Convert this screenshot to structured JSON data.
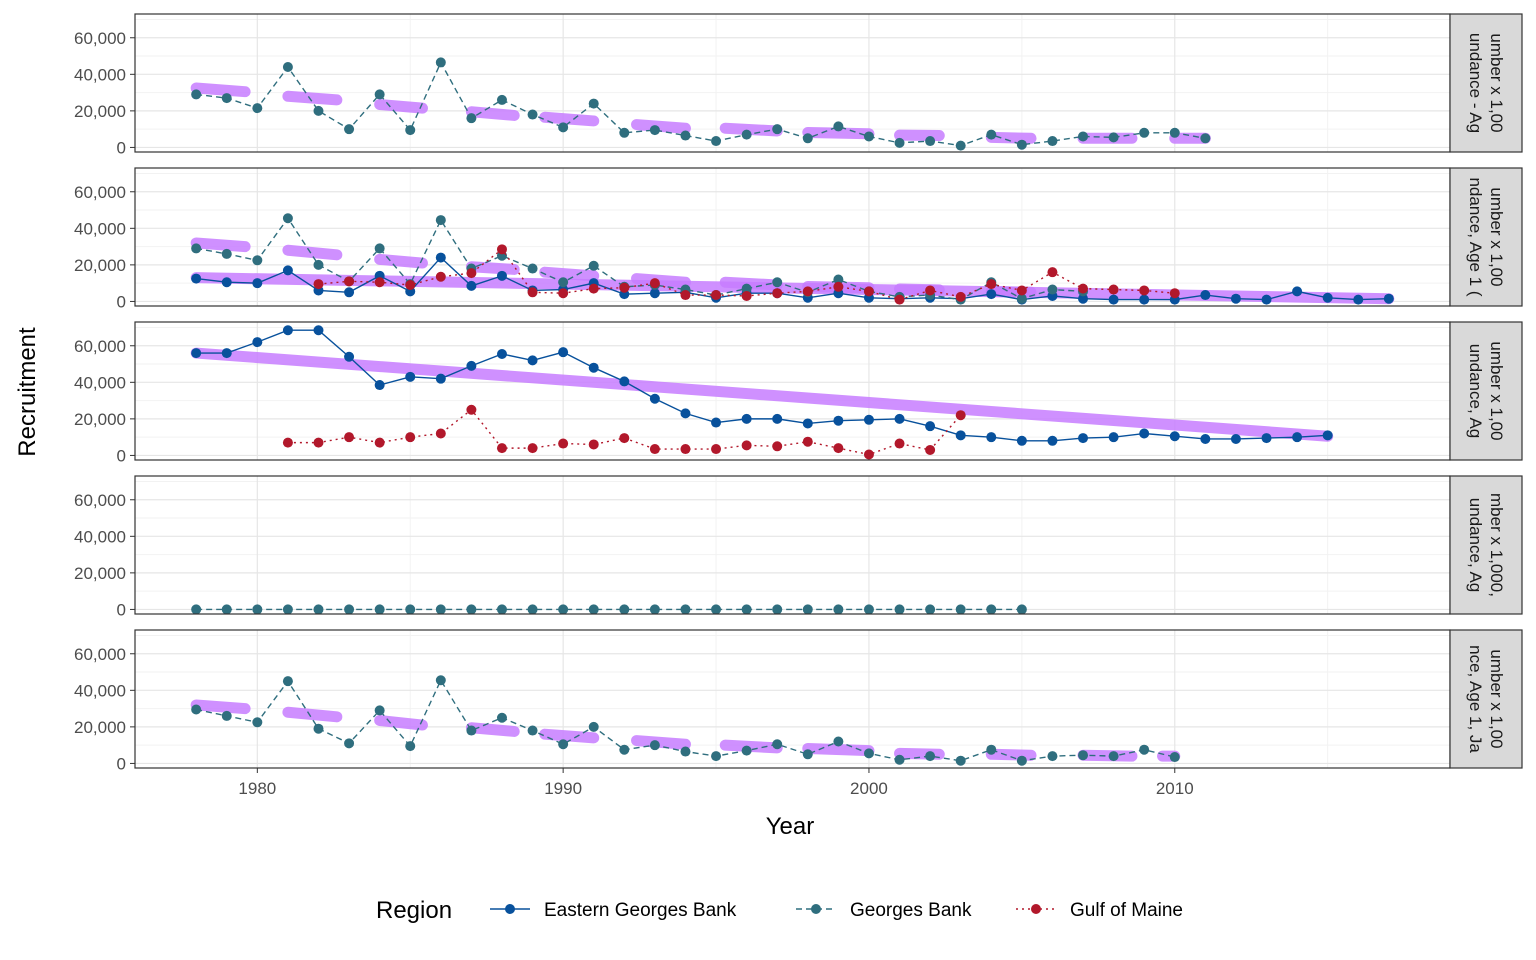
{
  "chart_data": {
    "type": "line",
    "xlabel": "Year",
    "ylabel": "Recruitment",
    "x_ticks": [
      1980,
      1990,
      2000,
      2010
    ],
    "y_ticks": [
      0,
      20000,
      40000,
      60000
    ],
    "y_tick_labels": [
      "0",
      "20,000",
      "40,000",
      "60,000"
    ],
    "xlim": [
      1976,
      2019
    ],
    "ylim": [
      -2500,
      73000
    ],
    "grid": true,
    "legend": {
      "title": "Region",
      "position": "bottom",
      "items": [
        {
          "name": "Eastern Georges Bank",
          "color": "#08519c",
          "dash": "solid"
        },
        {
          "name": "Georges Bank",
          "color": "#2f6e7e",
          "dash": "dashed"
        },
        {
          "name": "Gulf of Maine",
          "color": "#b2182b",
          "dash": "dotted"
        }
      ]
    },
    "trend_color": "#c77dff",
    "panels": [
      {
        "strip": [
          "undance - Ag",
          "umber x 1,00"
        ],
        "series": [
          {
            "name": "Georges Bank",
            "x": [
              1978,
              1979,
              1980,
              1981,
              1982,
              1983,
              1984,
              1985,
              1986,
              1987,
              1988,
              1989,
              1990,
              1991,
              1992,
              1993,
              1994,
              1995,
              1996,
              1997,
              1998,
              1999,
              2000,
              2001,
              2002,
              2003,
              2004,
              2005,
              2006,
              2007,
              2008,
              2009,
              2010,
              2011
            ],
            "y": [
              29000,
              27000,
              21500,
              44000,
              20000,
              10000,
              29000,
              9500,
              46500,
              16000,
              26000,
              18000,
              11000,
              24000,
              8000,
              9500,
              6500,
              3500,
              7000,
              10000,
              5000,
              11500,
              6000,
              2500,
              3500,
              1000,
              7000,
              1500,
              3500,
              6000,
              5500,
              8000,
              8000,
              5000
            ]
          }
        ],
        "trend_segments": [
          [
            [
              1978,
              32500
            ],
            [
              1979.6,
              30500
            ]
          ],
          [
            [
              1981,
              28000
            ],
            [
              1982.6,
              26000
            ]
          ],
          [
            [
              1984,
              23500
            ],
            [
              1985.4,
              21500
            ]
          ],
          [
            [
              1987,
              19500
            ],
            [
              1988.4,
              17500
            ]
          ],
          [
            [
              1989.4,
              16500
            ],
            [
              1991,
              14500
            ]
          ],
          [
            [
              1992.4,
              12500
            ],
            [
              1994,
              10500
            ]
          ],
          [
            [
              1995.3,
              10500
            ],
            [
              1997,
              9000
            ]
          ],
          [
            [
              1998,
              8200
            ],
            [
              2000,
              7500
            ]
          ],
          [
            [
              2001,
              6700
            ],
            [
              2002.3,
              6500
            ]
          ],
          [
            [
              2004,
              5500
            ],
            [
              2005.3,
              5000
            ]
          ],
          [
            [
              2007,
              5000
            ],
            [
              2008.6,
              5000
            ]
          ],
          [
            [
              2010,
              5000
            ],
            [
              2011,
              5000
            ]
          ]
        ]
      },
      {
        "strip": [
          "ndance, Age 1 (",
          "umber x 1,00"
        ],
        "series": [
          {
            "name": "Eastern Georges Bank",
            "x": [
              1978,
              1979,
              1980,
              1981,
              1982,
              1983,
              1984,
              1985,
              1986,
              1987,
              1988,
              1989,
              1990,
              1991,
              1992,
              1993,
              1994,
              1995,
              1996,
              1997,
              1998,
              1999,
              2000,
              2001,
              2002,
              2003,
              2004,
              2005,
              2006,
              2007,
              2008,
              2009,
              2010,
              2011,
              2012,
              2013,
              2014,
              2015,
              2016,
              2017
            ],
            "y": [
              12500,
              10500,
              10000,
              17000,
              6000,
              5000,
              14000,
              5500,
              24000,
              8500,
              14000,
              6000,
              6500,
              10000,
              4000,
              4500,
              5000,
              2000,
              4500,
              4500,
              2000,
              4500,
              2000,
              1500,
              2000,
              1500,
              4000,
              1000,
              3000,
              1500,
              1000,
              1000,
              1000,
              3500,
              1500,
              1000,
              5500,
              2000,
              1000,
              1500
            ]
          },
          {
            "name": "Georges Bank",
            "x": [
              1978,
              1979,
              1980,
              1981,
              1982,
              1983,
              1984,
              1985,
              1986,
              1987,
              1988,
              1989,
              1990,
              1991,
              1992,
              1993,
              1994,
              1995,
              1996,
              1997,
              1998,
              1999,
              2000,
              2001,
              2002,
              2003,
              2004,
              2005,
              2006,
              2007
            ],
            "y": [
              29000,
              26000,
              22500,
              45500,
              20000,
              11000,
              29000,
              9500,
              44500,
              18000,
              25000,
              18000,
              10500,
              19500,
              8000,
              9000,
              6500,
              3500,
              7000,
              10500,
              5000,
              12000,
              5500,
              2500,
              3500,
              1000,
              10500,
              1500,
              6500,
              5500
            ]
          },
          {
            "name": "Gulf of Maine",
            "x": [
              1982,
              1983,
              1984,
              1985,
              1986,
              1987,
              1988,
              1989,
              1990,
              1991,
              1992,
              1993,
              1994,
              1995,
              1996,
              1997,
              1998,
              1999,
              2000,
              2001,
              2002,
              2003,
              2004,
              2005,
              2006,
              2007,
              2008,
              2009,
              2010
            ],
            "y": [
              9500,
              11000,
              10500,
              9000,
              13500,
              15500,
              28500,
              5000,
              4500,
              7000,
              7500,
              10000,
              3500,
              3500,
              3000,
              4500,
              5500,
              8000,
              5500,
              1000,
              6000,
              2500,
              9500,
              6000,
              16000,
              7000,
              6500,
              6000,
              4500
            ]
          }
        ],
        "trend_lines": [
          [
            [
              1978,
              13000
            ],
            [
              2017,
              1500
            ]
          ]
        ],
        "trend_segments": [
          [
            [
              1978,
              32000
            ],
            [
              1979.6,
              30000
            ]
          ],
          [
            [
              1981,
              28000
            ],
            [
              1982.6,
              25500
            ]
          ],
          [
            [
              1984,
              23000
            ],
            [
              1985.4,
              21000
            ]
          ],
          [
            [
              1987,
              19000
            ],
            [
              1988.4,
              17500
            ]
          ],
          [
            [
              1989.4,
              16000
            ],
            [
              1991,
              14000
            ]
          ],
          [
            [
              1992.4,
              12500
            ],
            [
              1994,
              10500
            ]
          ],
          [
            [
              1995.3,
              10500
            ],
            [
              1997,
              9000
            ]
          ],
          [
            [
              1998,
              8200
            ],
            [
              2000,
              7500
            ]
          ],
          [
            [
              2001,
              6800
            ],
            [
              2002.3,
              6300
            ]
          ],
          [
            [
              2004,
              5500
            ],
            [
              2005.3,
              5000
            ]
          ]
        ]
      },
      {
        "strip": [
          "undance, Ag",
          "umber x 1,00"
        ],
        "series": [
          {
            "name": "Eastern Georges Bank",
            "x": [
              1978,
              1979,
              1980,
              1981,
              1982,
              1983,
              1984,
              1985,
              1986,
              1987,
              1988,
              1989,
              1990,
              1991,
              1992,
              1993,
              1994,
              1995,
              1996,
              1997,
              1998,
              1999,
              2000,
              2001,
              2002,
              2003,
              2004,
              2005,
              2006,
              2007,
              2008,
              2009,
              2010,
              2011,
              2012,
              2013,
              2014,
              2015
            ],
            "y": [
              56000,
              56000,
              62000,
              68500,
              68500,
              54000,
              38500,
              43000,
              42000,
              49000,
              55500,
              52000,
              56500,
              48000,
              40500,
              31000,
              23000,
              18000,
              20000,
              20000,
              17500,
              19000,
              19500,
              20000,
              16000,
              11000,
              10000,
              8000,
              8000,
              9500,
              10000,
              12000,
              10500,
              9000,
              9000,
              9500,
              10000,
              11000
            ]
          },
          {
            "name": "Gulf of Maine",
            "x": [
              1981,
              1982,
              1983,
              1984,
              1985,
              1986,
              1987,
              1988,
              1989,
              1990,
              1991,
              1992,
              1993,
              1994,
              1995,
              1996,
              1997,
              1998,
              1999,
              2000,
              2001,
              2002,
              2003
            ],
            "y": [
              7000,
              7000,
              10000,
              7000,
              10000,
              12000,
              25000,
              4000,
              4000,
              6500,
              6000,
              9500,
              3500,
              3500,
              3500,
              5500,
              5000,
              7500,
              4000,
              500,
              6500,
              3000,
              22000
            ]
          }
        ],
        "trend_lines": [
          [
            [
              1978,
              56000
            ],
            [
              2015,
              10500
            ]
          ]
        ],
        "trend_segments": []
      },
      {
        "strip": [
          "undance, Ag",
          "mber x 1,000,"
        ],
        "series": [
          {
            "name": "Georges Bank",
            "x": [
              1978,
              1979,
              1980,
              1981,
              1982,
              1983,
              1984,
              1985,
              1986,
              1987,
              1988,
              1989,
              1990,
              1991,
              1992,
              1993,
              1994,
              1995,
              1996,
              1997,
              1998,
              1999,
              2000,
              2001,
              2002,
              2003,
              2004,
              2005
            ],
            "y": [
              0,
              0,
              0,
              0,
              0,
              0,
              0,
              0,
              0,
              0,
              0,
              0,
              0,
              0,
              0,
              0,
              0,
              0,
              0,
              0,
              0,
              0,
              0,
              0,
              0,
              0,
              0,
              0
            ]
          }
        ],
        "trend_segments": []
      },
      {
        "strip": [
          "nce, Age 1, Ja",
          "umber x 1,00"
        ],
        "series": [
          {
            "name": "Georges Bank",
            "x": [
              1978,
              1979,
              1980,
              1981,
              1982,
              1983,
              1984,
              1985,
              1986,
              1987,
              1988,
              1989,
              1990,
              1991,
              1992,
              1993,
              1994,
              1995,
              1996,
              1997,
              1998,
              1999,
              2000,
              2001,
              2002,
              2003,
              2004,
              2005,
              2006,
              2007,
              2008,
              2009,
              2010
            ],
            "y": [
              29500,
              26000,
              22500,
              45000,
              19000,
              11000,
              29000,
              9500,
              45500,
              18000,
              25000,
              18000,
              10500,
              20000,
              7500,
              10000,
              6500,
              4000,
              7000,
              10500,
              5000,
              12000,
              5500,
              2000,
              4000,
              1500,
              7500,
              1500,
              4000,
              4500,
              4000,
              7500,
              3500
            ]
          }
        ],
        "trend_segments": [
          [
            [
              1978,
              32000
            ],
            [
              1979.6,
              30000
            ]
          ],
          [
            [
              1981,
              28000
            ],
            [
              1982.6,
              25500
            ]
          ],
          [
            [
              1984,
              23500
            ],
            [
              1985.4,
              21000
            ]
          ],
          [
            [
              1987,
              19500
            ],
            [
              1988.4,
              17500
            ]
          ],
          [
            [
              1989.4,
              16000
            ],
            [
              1991,
              14000
            ]
          ],
          [
            [
              1992.4,
              12500
            ],
            [
              1994,
              10500
            ]
          ],
          [
            [
              1995.3,
              10000
            ],
            [
              1997,
              8500
            ]
          ],
          [
            [
              1998,
              8200
            ],
            [
              2000,
              7000
            ]
          ],
          [
            [
              2001,
              5500
            ],
            [
              2002.3,
              5000
            ]
          ],
          [
            [
              2004,
              5000
            ],
            [
              2005.3,
              4500
            ]
          ],
          [
            [
              2007,
              4500
            ],
            [
              2008.6,
              4000
            ]
          ],
          [
            [
              2009.6,
              4000
            ],
            [
              2010,
              4000
            ]
          ]
        ]
      }
    ]
  }
}
